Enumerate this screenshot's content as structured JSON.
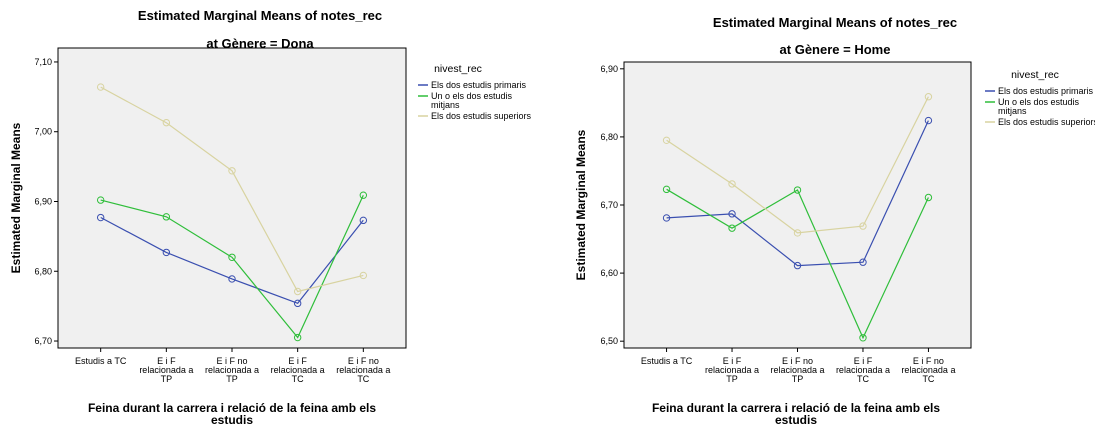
{
  "chart_data": [
    {
      "type": "line",
      "title": "Estimated Marginal Means of notes_rec",
      "subtitle": "at Gènere = Dona",
      "xlabel": [
        "Feina durant la carrera i relació de la feina amb els",
        "estudis"
      ],
      "ylabel": "Estimated Marginal Means",
      "categories": [
        [
          "Estudis a TC"
        ],
        [
          "E i F",
          "relacionada a",
          "TP"
        ],
        [
          "E i F no",
          "relacionada a",
          "TP"
        ],
        [
          "E i F",
          "relacionada a",
          "TC"
        ],
        [
          "E i F no",
          "relacionada a",
          "TC"
        ]
      ],
      "ylim": [
        6.69,
        7.12
      ],
      "yticks": [
        "6,70",
        "6,80",
        "6,90",
        "7,00",
        "7,10"
      ],
      "grid": false,
      "legend_title": "nivest_rec",
      "legend_position": "right",
      "series": [
        {
          "name": [
            "Els dos estudis primaris"
          ],
          "color": "#3a4fb0",
          "values": [
            6.877,
            6.827,
            6.789,
            6.754,
            6.873
          ]
        },
        {
          "name": [
            "Un o els dos estudis",
            "mitjans"
          ],
          "color": "#2fbe3a",
          "values": [
            6.902,
            6.878,
            6.82,
            6.705,
            6.909
          ]
        },
        {
          "name": [
            "Els dos estudis superiors"
          ],
          "color": "#d8d3a0",
          "values": [
            7.064,
            7.013,
            6.944,
            6.771,
            6.794
          ]
        }
      ]
    },
    {
      "type": "line",
      "title": "Estimated Marginal Means of notes_rec",
      "subtitle": "at Gènere = Home",
      "xlabel": [
        "Feina durant la carrera i relació de la feina amb els",
        "estudis"
      ],
      "ylabel": "Estimated Marginal Means",
      "categories": [
        [
          "Estudis a TC"
        ],
        [
          "E i F",
          "relacionada a",
          "TP"
        ],
        [
          "E i F no",
          "relacionada a",
          "TP"
        ],
        [
          "E i F",
          "relacionada a",
          "TC"
        ],
        [
          "E i F no",
          "relacionada a",
          "TC"
        ]
      ],
      "ylim": [
        6.49,
        6.91
      ],
      "yticks": [
        "6,50",
        "6,60",
        "6,70",
        "6,80",
        "6,90"
      ],
      "grid": false,
      "legend_title": "nivest_rec",
      "legend_position": "right",
      "series": [
        {
          "name": [
            "Els dos estudis primaris"
          ],
          "color": "#3a4fb0",
          "values": [
            6.681,
            6.687,
            6.611,
            6.616,
            6.824
          ]
        },
        {
          "name": [
            "Un o els dos estudis",
            "mitjans"
          ],
          "color": "#2fbe3a",
          "values": [
            6.723,
            6.666,
            6.722,
            6.505,
            6.711
          ]
        },
        {
          "name": [
            "Els dos estudis superiors"
          ],
          "color": "#d8d3a0",
          "values": [
            6.795,
            6.731,
            6.659,
            6.669,
            6.859
          ]
        }
      ]
    }
  ]
}
